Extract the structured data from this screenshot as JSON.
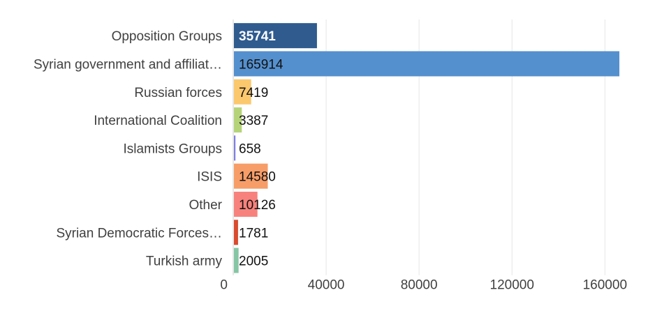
{
  "chart_data": {
    "type": "bar",
    "orientation": "horizontal",
    "categories": [
      "Opposition Groups",
      "Syrian government and affiliat…",
      "Russian forces",
      "International Coalition",
      "Islamists Groups",
      "ISIS",
      "Other",
      "Syrian Democratic Forces…",
      "Turkish army"
    ],
    "values": [
      35741,
      165914,
      7419,
      3387,
      658,
      14580,
      10126,
      1781,
      2005
    ],
    "colors": [
      "#2f5b8f",
      "#5590ce",
      "#fbc86e",
      "#b5d47a",
      "#7f7fe0",
      "#f79d68",
      "#f7817c",
      "#d94a2e",
      "#86c6a5"
    ],
    "value_labels": [
      "35741",
      "165914",
      "7419",
      "3387",
      "658",
      "14580",
      "10126",
      "1781",
      "2005"
    ],
    "xticks": [
      0,
      40000,
      80000,
      120000,
      160000
    ],
    "xtick_labels": [
      "0",
      "40000",
      "80000",
      "120000",
      "160000"
    ],
    "xlim": [
      0,
      165914
    ],
    "grid": true,
    "title": "",
    "xlabel": "",
    "ylabel": ""
  }
}
